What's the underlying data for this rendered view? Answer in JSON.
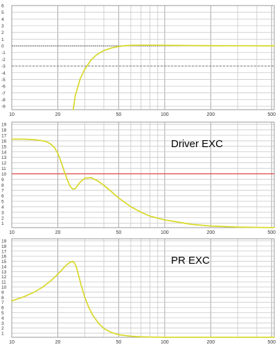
{
  "colors": {
    "curve": "#d9d92e",
    "grid": "#c8c8c8",
    "frame": "#9a9a9a",
    "tick_text": "#333333",
    "limit_line": "#e05050",
    "ref_dotted": "#333333",
    "ref_dashed": "#777777"
  },
  "chart_data": [
    {
      "type": "line",
      "title": "",
      "annotation": "",
      "xscale": "log",
      "xlim": [
        10,
        520
      ],
      "ylim": [
        -9.5,
        6
      ],
      "xtick_labels": [
        "10",
        "20",
        "50",
        "100",
        "200",
        "500"
      ],
      "ytick_labels": [
        "6",
        "5",
        "4",
        "3",
        "2",
        "1",
        "0",
        "-1",
        "-2",
        "-3",
        "-4",
        "-5",
        "-6",
        "-7",
        "-8",
        "-9"
      ],
      "grid": true,
      "reference_lines": [
        {
          "y": 0,
          "style": "dotted",
          "x_range": [
            10,
            240
          ]
        },
        {
          "y": -3,
          "style": "dashed",
          "x_range": [
            10,
            520
          ]
        }
      ],
      "series": [
        {
          "x": [
            25.2,
            26,
            28,
            30,
            33,
            36,
            40,
            45,
            50,
            55,
            60,
            70,
            80,
            100,
            150,
            200,
            300,
            400,
            520
          ],
          "y": [
            -9.5,
            -7.4,
            -4.9,
            -3.5,
            -2.1,
            -1.3,
            -0.7,
            -0.3,
            -0.1,
            0.03,
            0.08,
            0.1,
            0.1,
            0.08,
            0.05,
            0.03,
            0.02,
            0.01,
            0
          ]
        }
      ]
    },
    {
      "type": "line",
      "title": "",
      "annotation": "Driver EXC",
      "xscale": "log",
      "xlim": [
        10,
        520
      ],
      "ylim": [
        0.2,
        19.4
      ],
      "xtick_labels": [
        "10",
        "20",
        "50",
        "100",
        "200",
        "500"
      ],
      "ytick_labels": [
        "19",
        "18",
        "17",
        "16",
        "15",
        "14",
        "13",
        "12",
        "11",
        "10",
        "9",
        "8",
        "7",
        "6",
        "5",
        "4",
        "3",
        "2",
        "1"
      ],
      "grid": true,
      "limit_line": {
        "y": 10
      },
      "series": [
        {
          "x": [
            10,
            12,
            14,
            16,
            17,
            18,
            19,
            20,
            21,
            22,
            23,
            24,
            25,
            26,
            27,
            28,
            30,
            33,
            36,
            40,
            45,
            50,
            60,
            70,
            80,
            100,
            150,
            200,
            300,
            400,
            520
          ],
          "y": [
            16.3,
            16.3,
            16.2,
            16.0,
            15.8,
            15.4,
            14.8,
            13.7,
            12.2,
            10.5,
            9.0,
            7.8,
            7.2,
            7.3,
            7.9,
            8.5,
            9.2,
            9.3,
            8.8,
            7.9,
            6.7,
            5.6,
            4.0,
            3.0,
            2.3,
            1.6,
            0.8,
            0.5,
            0.3,
            0.25,
            0.2
          ]
        }
      ]
    },
    {
      "type": "line",
      "title": "",
      "annotation": "PR EXC",
      "xscale": "log",
      "xlim": [
        10,
        520
      ],
      "ylim": [
        0.2,
        19.4
      ],
      "xtick_labels": [
        "10",
        "20",
        "50",
        "100",
        "200",
        "500"
      ],
      "ytick_labels": [
        "19",
        "18",
        "17",
        "16",
        "15",
        "14",
        "13",
        "12",
        "11",
        "10",
        "9",
        "8",
        "7",
        "6",
        "5",
        "4",
        "3",
        "2",
        "1"
      ],
      "grid": true,
      "series": [
        {
          "x": [
            10,
            12,
            14,
            16,
            18,
            20,
            22,
            23,
            24,
            25,
            25.7,
            26.5,
            27.5,
            28.5,
            30,
            32,
            34,
            37,
            40,
            45,
            50,
            60,
            70,
            80,
            100,
            150,
            200,
            300,
            400,
            520
          ],
          "y": [
            7.3,
            8.1,
            9.0,
            10.0,
            11.2,
            12.5,
            13.8,
            14.4,
            14.8,
            15.0,
            14.7,
            13.8,
            12.0,
            10.2,
            8.0,
            5.9,
            4.4,
            2.9,
            1.9,
            1.1,
            0.7,
            0.4,
            0.3,
            0.25,
            0.2,
            0.2,
            0.2,
            0.2,
            0.2,
            0.2
          ]
        }
      ]
    }
  ]
}
